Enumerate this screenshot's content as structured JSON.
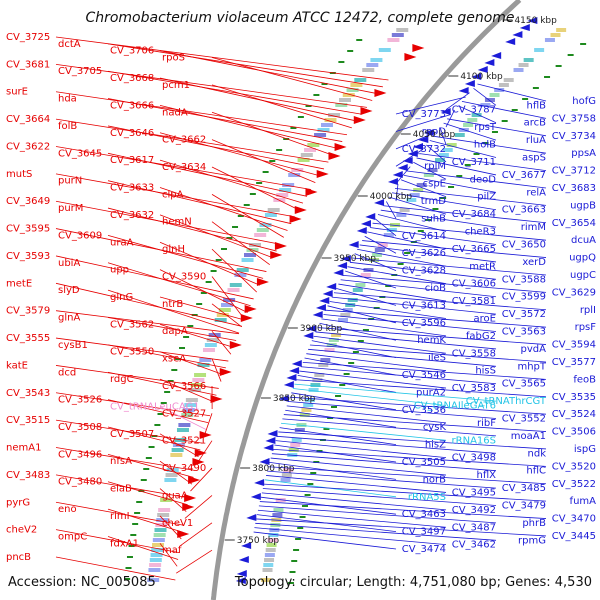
{
  "title": "Chromobacterium violaceum ATCC 12472, complete genome",
  "accession": "Accession: NC_005085",
  "summary": "Topology: circular; Length: 4,751,080 bp; Genes: 4,530",
  "colors": {
    "left_label": "#e60000",
    "right_label": "#1a1ad6",
    "trna_left": "#f08bd0",
    "rrna_right": "#22c4e6",
    "backbone": "#9a9a9a",
    "tick": "#1e8a1e"
  },
  "tick_labels": [
    {
      "text": "3750 kbp",
      "mark": "3750"
    },
    {
      "text": "3800 kbp",
      "mark": "3800"
    },
    {
      "text": "3850 kbp",
      "mark": "3850"
    },
    {
      "text": "3900 kbp",
      "mark": "3900"
    },
    {
      "text": "3950 kbp",
      "mark": "3950"
    },
    {
      "text": "4000 kbp",
      "mark": "4000"
    },
    {
      "text": "4050 kbp",
      "mark": "4050"
    },
    {
      "text": "4100 kbp",
      "mark": "4100"
    },
    {
      "text": "4150 kbp",
      "mark": "4150"
    }
  ],
  "left_labels": [
    {
      "text": "CV_3725",
      "kind": "gene"
    },
    {
      "text": "dctA",
      "kind": "gene"
    },
    {
      "text": "CV_3706",
      "kind": "gene"
    },
    {
      "text": "rpoS",
      "kind": "gene"
    },
    {
      "text": "CV_3681",
      "kind": "gene"
    },
    {
      "text": "CV_3705",
      "kind": "gene"
    },
    {
      "text": "CV_3668",
      "kind": "gene"
    },
    {
      "text": "pcm1",
      "kind": "gene"
    },
    {
      "text": "surE",
      "kind": "gene"
    },
    {
      "text": "hda",
      "kind": "gene"
    },
    {
      "text": "CV_3666",
      "kind": "gene"
    },
    {
      "text": "nadA",
      "kind": "gene"
    },
    {
      "text": "CV_3664",
      "kind": "gene"
    },
    {
      "text": "folB",
      "kind": "gene"
    },
    {
      "text": "CV_3646",
      "kind": "gene"
    },
    {
      "text": "CV_3662",
      "kind": "gene"
    },
    {
      "text": "CV_3622",
      "kind": "gene"
    },
    {
      "text": "CV_3645",
      "kind": "gene"
    },
    {
      "text": "CV_3617",
      "kind": "gene"
    },
    {
      "text": "CV_3634",
      "kind": "gene"
    },
    {
      "text": "mutS",
      "kind": "gene"
    },
    {
      "text": "purN",
      "kind": "gene"
    },
    {
      "text": "CV_3633",
      "kind": "gene"
    },
    {
      "text": "clpA",
      "kind": "gene"
    },
    {
      "text": "CV_3649",
      "kind": "gene"
    },
    {
      "text": "purM",
      "kind": "gene"
    },
    {
      "text": "CV_3632",
      "kind": "gene"
    },
    {
      "text": "hemN",
      "kind": "gene"
    },
    {
      "text": "CV_3595",
      "kind": "gene"
    },
    {
      "text": "CV_3609",
      "kind": "gene"
    },
    {
      "text": "uraA",
      "kind": "gene"
    },
    {
      "text": "glnH",
      "kind": "gene"
    },
    {
      "text": "CV_3593",
      "kind": "gene"
    },
    {
      "text": "ubiA",
      "kind": "gene"
    },
    {
      "text": "upp",
      "kind": "gene"
    },
    {
      "text": "CV_3590",
      "kind": "gene"
    },
    {
      "text": "metE",
      "kind": "gene"
    },
    {
      "text": "slyD",
      "kind": "gene"
    },
    {
      "text": "glnG",
      "kind": "gene"
    },
    {
      "text": "ntrB",
      "kind": "gene"
    },
    {
      "text": "CV_3579",
      "kind": "gene"
    },
    {
      "text": "glnA",
      "kind": "gene"
    },
    {
      "text": "CV_3562",
      "kind": "gene"
    },
    {
      "text": "dapA",
      "kind": "gene"
    },
    {
      "text": "CV_3555",
      "kind": "gene"
    },
    {
      "text": "cysB1",
      "kind": "gene"
    },
    {
      "text": "CV_3550",
      "kind": "gene"
    },
    {
      "text": "xseA",
      "kind": "gene"
    },
    {
      "text": "katE",
      "kind": "gene"
    },
    {
      "text": "dcd",
      "kind": "gene"
    },
    {
      "text": "rdgC",
      "kind": "gene"
    },
    {
      "text": "CV_3566",
      "kind": "gene"
    },
    {
      "text": "CV_3543",
      "kind": "gene"
    },
    {
      "text": "CV_3526",
      "kind": "gene"
    },
    {
      "text": "CV_tRNALeuCAG1",
      "kind": "trna"
    },
    {
      "text": "CV_3527",
      "kind": "gene"
    },
    {
      "text": "CV_3515",
      "kind": "gene"
    },
    {
      "text": "CV_3508",
      "kind": "gene"
    },
    {
      "text": "CV_3507",
      "kind": "gene"
    },
    {
      "text": "CV_3521",
      "kind": "gene"
    },
    {
      "text": "nemA1",
      "kind": "gene"
    },
    {
      "text": "CV_3496",
      "kind": "gene"
    },
    {
      "text": "nfsA",
      "kind": "gene"
    },
    {
      "text": "CV_3490",
      "kind": "gene"
    },
    {
      "text": "CV_3483",
      "kind": "gene"
    },
    {
      "text": "CV_3480",
      "kind": "gene"
    },
    {
      "text": "elaB",
      "kind": "gene"
    },
    {
      "text": "guaA",
      "kind": "gene"
    },
    {
      "text": "pyrG",
      "kind": "gene"
    },
    {
      "text": "eno",
      "kind": "gene"
    },
    {
      "text": "rimI",
      "kind": "gene"
    },
    {
      "text": "cheV1",
      "kind": "gene"
    },
    {
      "text": "cheV2",
      "kind": "gene"
    },
    {
      "text": "ompC",
      "kind": "gene"
    },
    {
      "text": "fdxA1",
      "kind": "gene"
    },
    {
      "text": "maf",
      "kind": "gene"
    },
    {
      "text": "pncB",
      "kind": "gene"
    }
  ],
  "right_labels": [
    {
      "text": "hofG",
      "kind": "gene"
    },
    {
      "text": "hflB",
      "kind": "gene"
    },
    {
      "text": "CV_3787",
      "kind": "gene"
    },
    {
      "text": "CV_3773",
      "kind": "gene"
    },
    {
      "text": "CV_3758",
      "kind": "gene"
    },
    {
      "text": "arcB",
      "kind": "gene"
    },
    {
      "text": "rpsT",
      "kind": "gene"
    },
    {
      "text": "rpoD",
      "kind": "gene"
    },
    {
      "text": "CV_3734",
      "kind": "gene"
    },
    {
      "text": "rluA",
      "kind": "gene"
    },
    {
      "text": "holB",
      "kind": "gene"
    },
    {
      "text": "CV_3732",
      "kind": "gene"
    },
    {
      "text": "ppsA",
      "kind": "gene"
    },
    {
      "text": "aspS",
      "kind": "gene"
    },
    {
      "text": "CV_3711",
      "kind": "gene"
    },
    {
      "text": "rplM",
      "kind": "gene"
    },
    {
      "text": "CV_3712",
      "kind": "gene"
    },
    {
      "text": "CV_3677",
      "kind": "gene"
    },
    {
      "text": "deoD",
      "kind": "gene"
    },
    {
      "text": "cspE",
      "kind": "gene"
    },
    {
      "text": "CV_3683",
      "kind": "gene"
    },
    {
      "text": "relA",
      "kind": "gene"
    },
    {
      "text": "pilZ",
      "kind": "gene"
    },
    {
      "text": "trmD",
      "kind": "gene"
    },
    {
      "text": "ugpB",
      "kind": "gene"
    },
    {
      "text": "CV_3663",
      "kind": "gene"
    },
    {
      "text": "CV_3684",
      "kind": "gene"
    },
    {
      "text": "suhB",
      "kind": "gene"
    },
    {
      "text": "CV_3654",
      "kind": "gene"
    },
    {
      "text": "rimM",
      "kind": "gene"
    },
    {
      "text": "cheR3",
      "kind": "gene"
    },
    {
      "text": "CV_3614",
      "kind": "gene"
    },
    {
      "text": "dcuA",
      "kind": "gene"
    },
    {
      "text": "CV_3650",
      "kind": "gene"
    },
    {
      "text": "CV_3665",
      "kind": "gene"
    },
    {
      "text": "CV_3626",
      "kind": "gene"
    },
    {
      "text": "ugpQ",
      "kind": "gene"
    },
    {
      "text": "xerD",
      "kind": "gene"
    },
    {
      "text": "metR",
      "kind": "gene"
    },
    {
      "text": "CV_3628",
      "kind": "gene"
    },
    {
      "text": "ugpC",
      "kind": "gene"
    },
    {
      "text": "CV_3588",
      "kind": "gene"
    },
    {
      "text": "CV_3606",
      "kind": "gene"
    },
    {
      "text": "cioB",
      "kind": "gene"
    },
    {
      "text": "CV_3629",
      "kind": "gene"
    },
    {
      "text": "CV_3599",
      "kind": "gene"
    },
    {
      "text": "CV_3581",
      "kind": "gene"
    },
    {
      "text": "CV_3613",
      "kind": "gene"
    },
    {
      "text": "rplI",
      "kind": "gene"
    },
    {
      "text": "CV_3572",
      "kind": "gene"
    },
    {
      "text": "aroE",
      "kind": "gene"
    },
    {
      "text": "CV_3596",
      "kind": "gene"
    },
    {
      "text": "rpsF",
      "kind": "gene"
    },
    {
      "text": "CV_3563",
      "kind": "gene"
    },
    {
      "text": "fabG2",
      "kind": "gene"
    },
    {
      "text": "hemK",
      "kind": "gene"
    },
    {
      "text": "CV_3594",
      "kind": "gene"
    },
    {
      "text": "pvdA",
      "kind": "gene"
    },
    {
      "text": "CV_3558",
      "kind": "gene"
    },
    {
      "text": "ileS",
      "kind": "gene"
    },
    {
      "text": "CV_3577",
      "kind": "gene"
    },
    {
      "text": "mhpT",
      "kind": "gene"
    },
    {
      "text": "hisS",
      "kind": "gene"
    },
    {
      "text": "CV_3546",
      "kind": "gene"
    },
    {
      "text": "feoB",
      "kind": "gene"
    },
    {
      "text": "CV_3565",
      "kind": "gene"
    },
    {
      "text": "CV_3583",
      "kind": "gene"
    },
    {
      "text": "purA2",
      "kind": "gene"
    },
    {
      "text": "CV_3535",
      "kind": "gene"
    },
    {
      "text": "CV_tRNAThrCGT",
      "kind": "rrna"
    },
    {
      "text": "CV_tRNAIleGAT6",
      "kind": "rrna"
    },
    {
      "text": "CV_3536",
      "kind": "gene"
    },
    {
      "text": "CV_3524",
      "kind": "gene"
    },
    {
      "text": "CV_3552",
      "kind": "gene"
    },
    {
      "text": "ribF",
      "kind": "gene"
    },
    {
      "text": "cysK",
      "kind": "gene"
    },
    {
      "text": "CV_3506",
      "kind": "gene"
    },
    {
      "text": "moaA1",
      "kind": "gene"
    },
    {
      "text": "rRNA16S",
      "kind": "rrna"
    },
    {
      "text": "hisZ",
      "kind": "gene"
    },
    {
      "text": "ispG",
      "kind": "gene"
    },
    {
      "text": "ndk",
      "kind": "gene"
    },
    {
      "text": "CV_3498",
      "kind": "gene"
    },
    {
      "text": "CV_3505",
      "kind": "gene"
    },
    {
      "text": "CV_3520",
      "kind": "gene"
    },
    {
      "text": "hflC",
      "kind": "gene"
    },
    {
      "text": "hflX",
      "kind": "gene"
    },
    {
      "text": "norB",
      "kind": "gene"
    },
    {
      "text": "CV_3522",
      "kind": "gene"
    },
    {
      "text": "CV_3485",
      "kind": "gene"
    },
    {
      "text": "CV_3495",
      "kind": "gene"
    },
    {
      "text": "rRNA5S",
      "kind": "rrna"
    },
    {
      "text": "fumA",
      "kind": "gene"
    },
    {
      "text": "CV_3479",
      "kind": "gene"
    },
    {
      "text": "CV_3492",
      "kind": "gene"
    },
    {
      "text": "CV_3463",
      "kind": "gene"
    },
    {
      "text": "CV_3470",
      "kind": "gene"
    },
    {
      "text": "phrB",
      "kind": "gene"
    },
    {
      "text": "CV_3487",
      "kind": "gene"
    },
    {
      "text": "CV_3497",
      "kind": "gene"
    },
    {
      "text": "CV_3445",
      "kind": "gene"
    },
    {
      "text": "rpmG",
      "kind": "gene"
    },
    {
      "text": "CV_3462",
      "kind": "gene"
    },
    {
      "text": "CV_3474",
      "kind": "gene"
    }
  ]
}
